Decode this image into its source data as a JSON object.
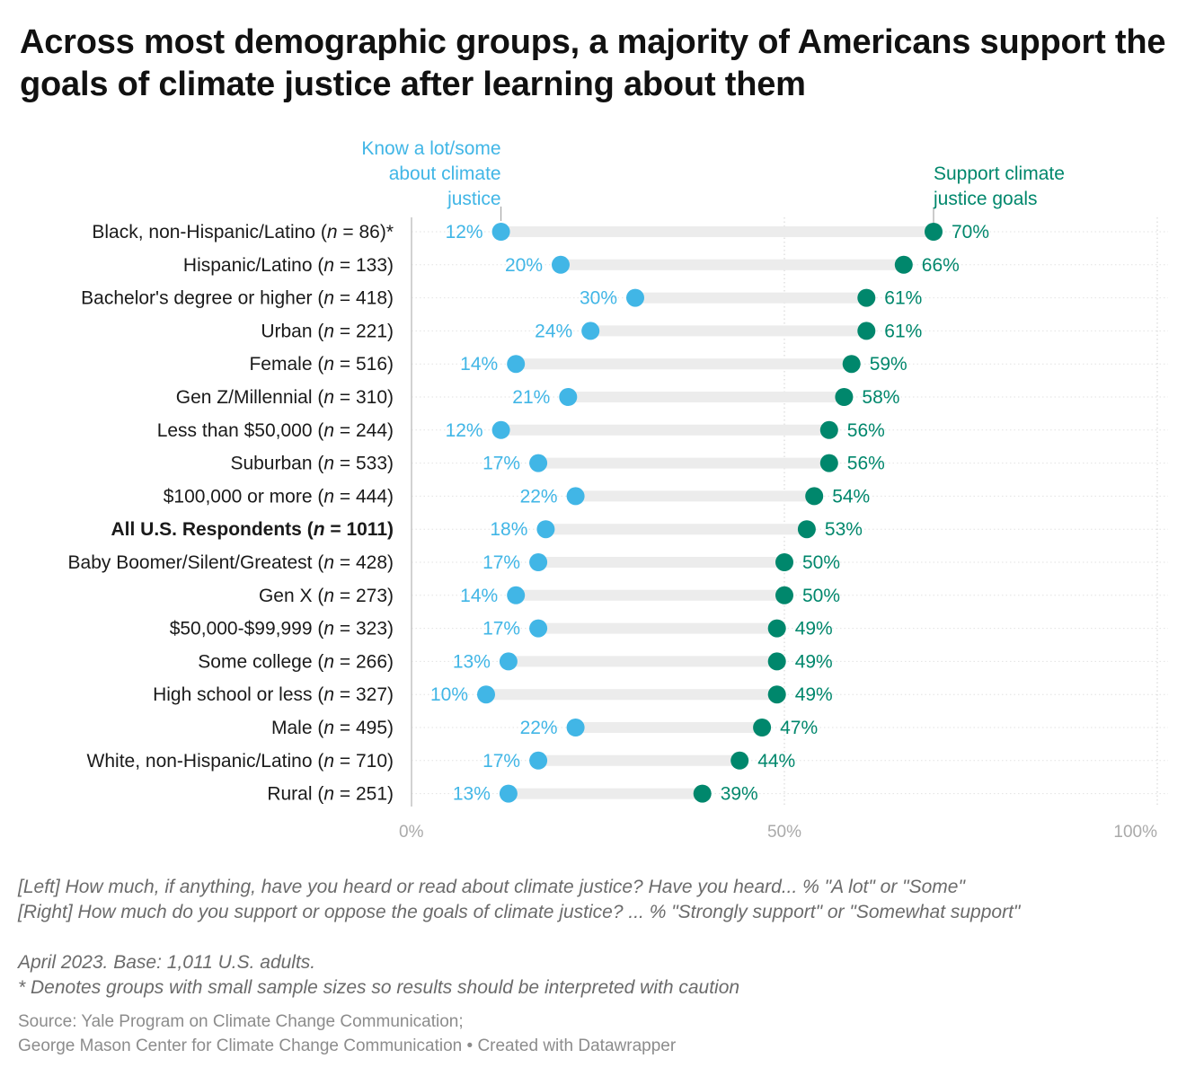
{
  "title": "Across most demographic groups, a majority of Americans support the goals of climate justice after learning about them",
  "colors": {
    "know": "#41b6e6",
    "support": "#00876c",
    "track": "#ececec",
    "grid": "#d9d9d9",
    "axis": "#aaaaaa"
  },
  "chart_data": {
    "type": "dot",
    "xlim": [
      0,
      100
    ],
    "x_ticks": [
      "0%",
      "50%",
      "100%"
    ],
    "series_labels": [
      {
        "key": "know",
        "lines": [
          "Know a lot/some",
          "about climate",
          "justice"
        ]
      },
      {
        "key": "support",
        "lines": [
          "Support climate",
          "justice goals"
        ]
      }
    ],
    "rows": [
      {
        "group": "Black, non-Hispanic/Latino",
        "n": "86",
        "suffix": "*",
        "bold": false,
        "know": 12,
        "support": 70
      },
      {
        "group": "Hispanic/Latino",
        "n": "133",
        "suffix": "",
        "bold": false,
        "know": 20,
        "support": 66
      },
      {
        "group": "Bachelor's degree or higher",
        "n": "418",
        "suffix": "",
        "bold": false,
        "know": 30,
        "support": 61
      },
      {
        "group": "Urban",
        "n": "221",
        "suffix": "",
        "bold": false,
        "know": 24,
        "support": 61
      },
      {
        "group": "Female",
        "n": "516",
        "suffix": "",
        "bold": false,
        "know": 14,
        "support": 59
      },
      {
        "group": "Gen Z/Millennial",
        "n": "310",
        "suffix": "",
        "bold": false,
        "know": 21,
        "support": 58
      },
      {
        "group": "Less than $50,000",
        "n": "244",
        "suffix": "",
        "bold": false,
        "know": 12,
        "support": 56
      },
      {
        "group": "Suburban",
        "n": "533",
        "suffix": "",
        "bold": false,
        "know": 17,
        "support": 56
      },
      {
        "group": "$100,000 or more",
        "n": "444",
        "suffix": "",
        "bold": false,
        "know": 22,
        "support": 54
      },
      {
        "group": "All U.S. Respondents",
        "n": "1011",
        "suffix": "",
        "bold": true,
        "know": 18,
        "support": 53
      },
      {
        "group": "Baby Boomer/Silent/Greatest",
        "n": "428",
        "suffix": "",
        "bold": false,
        "know": 17,
        "support": 50
      },
      {
        "group": "Gen X",
        "n": "273",
        "suffix": "",
        "bold": false,
        "know": 14,
        "support": 50
      },
      {
        "group": "$50,000-$99,999",
        "n": "323",
        "suffix": "",
        "bold": false,
        "know": 17,
        "support": 49
      },
      {
        "group": "Some college",
        "n": "266",
        "suffix": "",
        "bold": false,
        "know": 13,
        "support": 49
      },
      {
        "group": "High school or less",
        "n": "327",
        "suffix": "",
        "bold": false,
        "know": 10,
        "support": 49
      },
      {
        "group": "Male",
        "n": "495",
        "suffix": "",
        "bold": false,
        "know": 22,
        "support": 47
      },
      {
        "group": "White, non-Hispanic/Latino",
        "n": "710",
        "suffix": "",
        "bold": false,
        "know": 17,
        "support": 44
      },
      {
        "group": "Rural",
        "n": "251",
        "suffix": "",
        "bold": false,
        "know": 13,
        "support": 39
      }
    ]
  },
  "notes": {
    "left_question": "[Left] How much, if anything, have you heard or read about climate justice? Have you heard... % \"A lot\" or \"Some\"",
    "right_question": "[Right] How much do you support or oppose the goals of climate justice? ... % \"Strongly support\" or \"Somewhat support\"",
    "date_base": "April 2023. Base: 1,011 U.S. adults.",
    "caution": "* Denotes groups with small sample sizes so results should be interpreted with caution"
  },
  "source": {
    "line1": "Source: Yale Program on Climate Change Communication;",
    "line2": "George Mason Center for Climate Change Communication • Created with Datawrapper"
  }
}
